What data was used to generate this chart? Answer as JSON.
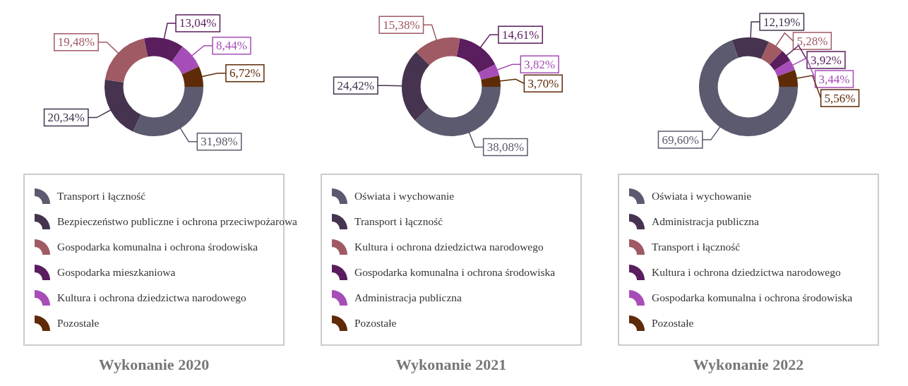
{
  "chart_data": [
    {
      "type": "donut",
      "title": "Wykonanie 2020",
      "categories": [
        "Transport i łączność",
        "Bezpieczeństwo publiczne i ochrona przeciwpożarowa",
        "Gospodarka komunalna i ochrona środowiska",
        "Gospodarka mieszkaniowa",
        "Kultura i ochrona dziedzictwa narodowego",
        "Pozostałe"
      ],
      "values": [
        31.98,
        20.34,
        19.48,
        13.04,
        8.44,
        6.72
      ],
      "colors": [
        "#5c5a6e",
        "#45334f",
        "#a05a63",
        "#5a1d5e",
        "#a64db8",
        "#5e2a08"
      ],
      "value_labels": [
        "31,98%",
        "20,34%",
        "19,48%",
        "13,04%",
        "8,44%",
        "6,72%"
      ],
      "legend": "bottom"
    },
    {
      "type": "donut",
      "title": "Wykonanie 2021",
      "categories": [
        "Oświata i wychowanie",
        "Transport i łączność",
        "Kultura i ochrona dziedzictwa narodowego",
        "Gospodarka komunalna i ochrona środowiska",
        "Administracja publiczna",
        "Pozostałe"
      ],
      "values": [
        38.08,
        24.42,
        15.38,
        14.61,
        3.82,
        3.7
      ],
      "colors": [
        "#5c5a6e",
        "#45334f",
        "#a05a63",
        "#5a1d5e",
        "#a64db8",
        "#5e2a08"
      ],
      "value_labels": [
        "38,08%",
        "24,42%",
        "15,38%",
        "14,61%",
        "3,82%",
        "3,70%"
      ],
      "legend": "bottom"
    },
    {
      "type": "donut",
      "title": "Wykonanie 2022",
      "categories": [
        "Oświata i wychowanie",
        "Administracja publiczna",
        "Transport i łączność",
        "Kultura i ochrona dziedzictwa narodowego",
        "Gospodarka komunalna i ochrona środowiska",
        "Pozostałe"
      ],
      "values": [
        69.6,
        12.19,
        5.28,
        3.92,
        3.44,
        5.56
      ],
      "colors": [
        "#5c5a6e",
        "#45334f",
        "#a05a63",
        "#5a1d5e",
        "#a64db8",
        "#5e2a08"
      ],
      "value_labels": [
        "69,60%",
        "12,19%",
        "5,28%",
        "3,92%",
        "3,44%",
        "5,56%"
      ],
      "legend": "bottom"
    }
  ]
}
